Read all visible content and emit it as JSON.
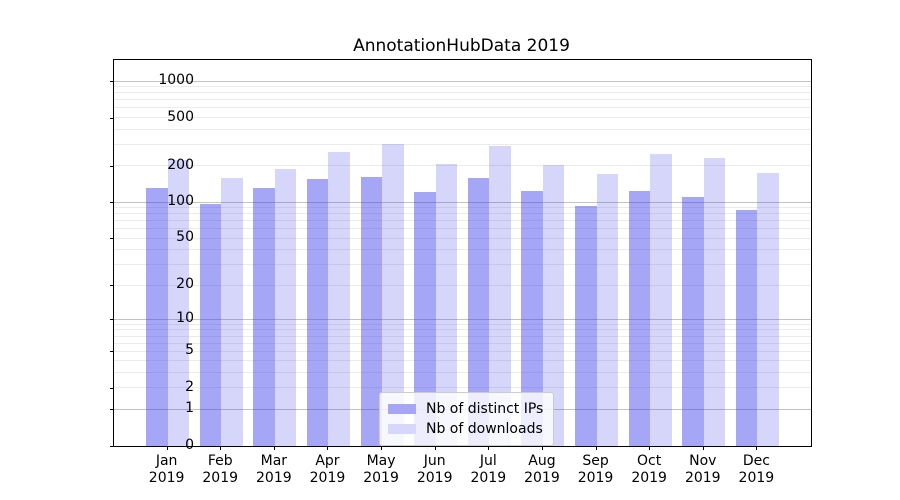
{
  "title": "AnnotationHubData 2019",
  "legend": {
    "items": [
      {
        "label": "Nb of distinct IPs",
        "swatch_color": "#a6a6f6"
      },
      {
        "label": "Nb of downloads",
        "swatch_color": "#d7d7fb"
      }
    ]
  },
  "chart_data": {
    "type": "bar",
    "title": "AnnotationHubData 2019",
    "categories": [
      "Jan",
      "Feb",
      "Mar",
      "Apr",
      "May",
      "Jun",
      "Jul",
      "Aug",
      "Sep",
      "Oct",
      "Nov",
      "Dec"
    ],
    "category_year": "2019",
    "series": [
      {
        "name": "Nb of distinct IPs",
        "fill": "rgba(62,62,235,0.46)",
        "swatch_color": "#a6a6f6",
        "values": [
          132,
          97,
          132,
          155,
          163,
          122,
          160,
          124,
          93,
          125,
          110,
          87
        ]
      },
      {
        "name": "Nb of downloads",
        "fill": "rgba(62,62,235,0.21)",
        "swatch_color": "#d7d7fb",
        "values": [
          222,
          160,
          187,
          258,
          303,
          208,
          291,
          205,
          172,
          253,
          233,
          176
        ]
      }
    ],
    "xlabel": "",
    "ylabel": "",
    "yscale": "log1p",
    "ylim": [
      0,
      1490
    ],
    "yticks": [
      0,
      1,
      2,
      5,
      10,
      20,
      50,
      100,
      200,
      500,
      1000
    ],
    "grid": "major and minor horizontal gridlines",
    "legend_position": "lower center"
  }
}
